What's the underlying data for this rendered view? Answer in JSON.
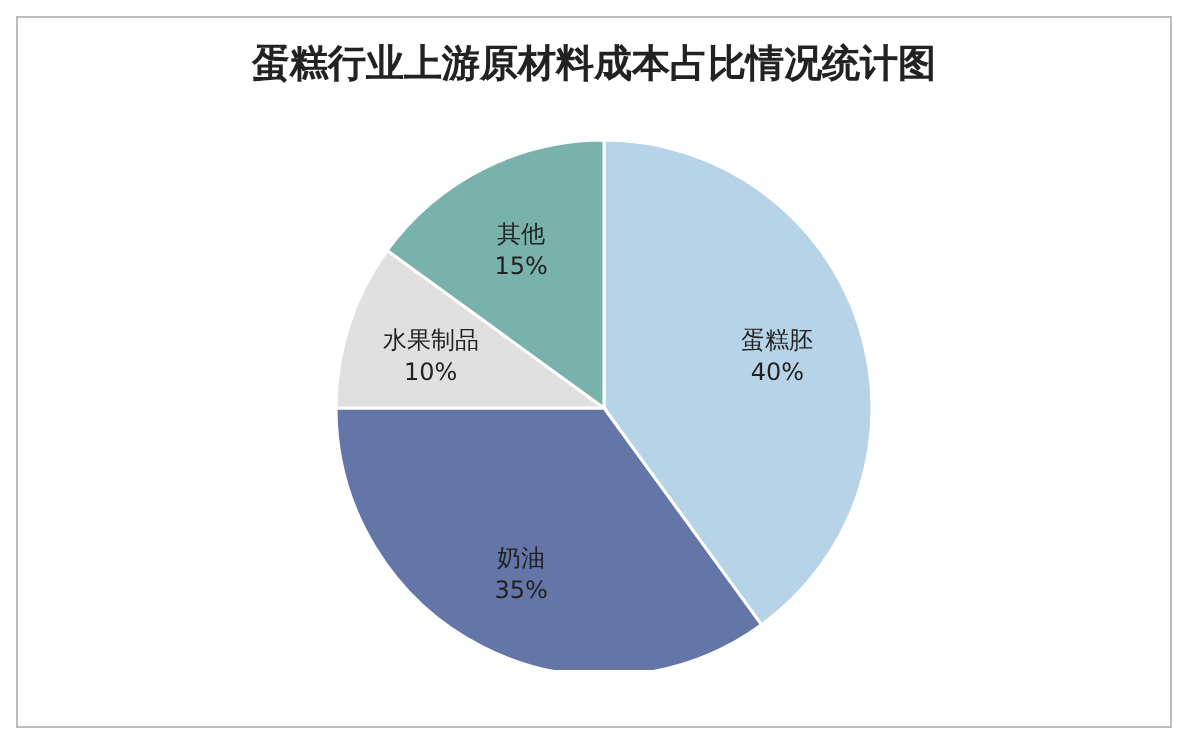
{
  "chart_data": {
    "type": "pie",
    "title": "蛋糕行业上游原材料成本占比情况统计图",
    "categories": [
      "蛋糕胚",
      "奶油",
      "水果制品",
      "其他"
    ],
    "values": [
      40,
      35,
      10,
      15
    ],
    "value_labels": [
      "40%",
      "35%",
      "10%",
      "15%"
    ],
    "colors": [
      "#b7d3e7",
      "#6476a8",
      "#e0e0e0",
      "#79b1ab"
    ]
  }
}
